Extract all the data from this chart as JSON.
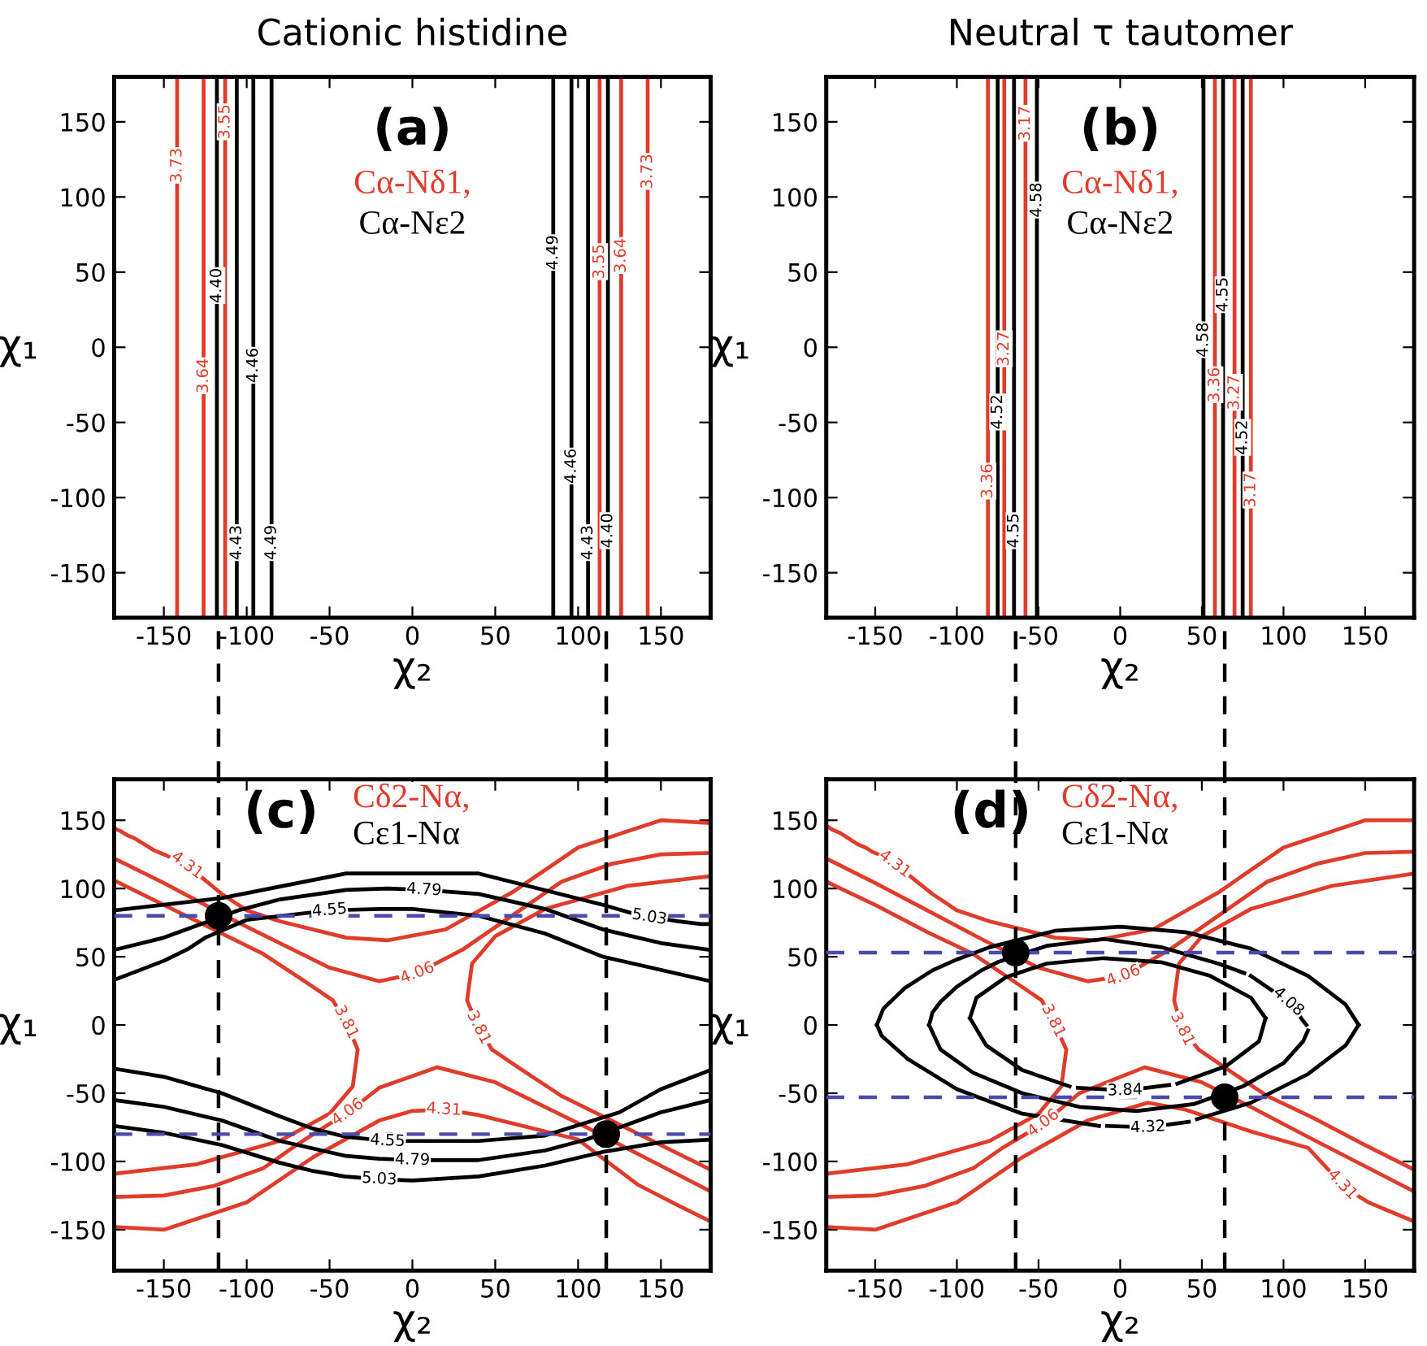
{
  "chart_data": [
    {
      "type": "line",
      "title": "Cationic histidine",
      "xlabel": "χ₂",
      "ylabel": "χ₁",
      "xlim": [
        -180,
        180
      ],
      "ylim": [
        -180,
        180
      ],
      "xticks": [
        -150,
        -100,
        -50,
        0,
        50,
        100,
        150
      ],
      "yticks": [
        -150,
        -100,
        -50,
        0,
        50,
        100,
        150
      ],
      "annotations": [
        "(a)",
        "Cα-Nδ1,",
        "Cα-Nε2"
      ],
      "series": [
        {
          "name": "3.73",
          "color": "#e03c2c",
          "x": [
            -142,
            -142,
            -142
          ],
          "values": [
            -180,
            121,
            180
          ]
        },
        {
          "name": "3.64",
          "color": "#e03c2c",
          "x": [
            -126,
            -126,
            -126
          ],
          "values": [
            -180,
            -19,
            180
          ]
        },
        {
          "name": "3.55",
          "color": "#e03c2c",
          "x": [
            -113,
            -113,
            -113
          ],
          "values": [
            -180,
            150,
            180
          ]
        },
        {
          "name": "3.55",
          "color": "#e03c2c",
          "x": [
            113,
            113,
            113
          ],
          "values": [
            -180,
            57,
            180
          ]
        },
        {
          "name": "3.64",
          "color": "#e03c2c",
          "x": [
            126,
            126,
            126
          ],
          "values": [
            -180,
            61,
            180
          ]
        },
        {
          "name": "3.73",
          "color": "#e03c2c",
          "x": [
            142,
            142,
            142
          ],
          "values": [
            -180,
            117,
            180
          ]
        },
        {
          "name": "4.40",
          "color": "#000000",
          "x": [
            -118,
            -118,
            -118
          ],
          "values": [
            -180,
            41,
            180
          ]
        },
        {
          "name": "4.43",
          "color": "#000000",
          "x": [
            -106,
            -106,
            -106
          ],
          "values": [
            -180,
            -130,
            180
          ]
        },
        {
          "name": "4.46",
          "color": "#000000",
          "x": [
            -96,
            -96,
            -96
          ],
          "values": [
            -180,
            -12,
            180
          ]
        },
        {
          "name": "4.49",
          "color": "#000000",
          "x": [
            -85,
            -85,
            -85
          ],
          "values": [
            -180,
            -130,
            180
          ]
        },
        {
          "name": "4.49",
          "color": "#000000",
          "x": [
            85,
            85,
            85
          ],
          "values": [
            -180,
            63,
            180
          ]
        },
        {
          "name": "4.46",
          "color": "#000000",
          "x": [
            96,
            96,
            96
          ],
          "values": [
            -180,
            -79,
            180
          ]
        },
        {
          "name": "4.43",
          "color": "#000000",
          "x": [
            106,
            106,
            106
          ],
          "values": [
            -180,
            -130,
            180
          ]
        },
        {
          "name": "4.40",
          "color": "#000000",
          "x": [
            118,
            118,
            118
          ],
          "values": [
            -180,
            -122,
            180
          ]
        }
      ]
    },
    {
      "type": "line",
      "title": "Neutral τ tautomer",
      "xlabel": "χ₂",
      "ylabel": "χ₁",
      "xlim": [
        -180,
        180
      ],
      "ylim": [
        -180,
        180
      ],
      "xticks": [
        -150,
        -100,
        -50,
        0,
        50,
        100,
        150
      ],
      "yticks": [
        -150,
        -100,
        -50,
        0,
        50,
        100,
        150
      ],
      "annotations": [
        "(b)",
        "Cα-Nδ1,",
        "Cα-Nε2"
      ],
      "series": [
        {
          "name": "3.36",
          "color": "#e03c2c",
          "x": [
            -81,
            -81,
            -81
          ],
          "values": [
            -180,
            -89,
            180
          ]
        },
        {
          "name": "3.27",
          "color": "#e03c2c",
          "x": [
            -71,
            -71,
            -71
          ],
          "values": [
            -180,
            -1,
            180
          ]
        },
        {
          "name": "3.17",
          "color": "#e03c2c",
          "x": [
            -58,
            -58,
            -58
          ],
          "values": [
            -180,
            149,
            180
          ]
        },
        {
          "name": "3.36",
          "color": "#e03c2c",
          "x": [
            58,
            58,
            58
          ],
          "values": [
            -180,
            -25,
            180
          ]
        },
        {
          "name": "3.27",
          "color": "#e03c2c",
          "x": [
            70,
            70,
            70
          ],
          "values": [
            -180,
            -30,
            180
          ]
        },
        {
          "name": "3.17",
          "color": "#e03c2c",
          "x": [
            80,
            80,
            80
          ],
          "values": [
            -180,
            -95,
            180
          ]
        },
        {
          "name": "4.52",
          "color": "#000000",
          "x": [
            -75,
            -75,
            -75
          ],
          "values": [
            -180,
            -43,
            180
          ]
        },
        {
          "name": "4.55",
          "color": "#000000",
          "x": [
            -65,
            -65,
            -65
          ],
          "values": [
            -180,
            -122,
            180
          ]
        },
        {
          "name": "4.58",
          "color": "#000000",
          "x": [
            -51,
            -51,
            -51
          ],
          "values": [
            -180,
            98,
            180
          ]
        },
        {
          "name": "4.58",
          "color": "#000000",
          "x": [
            51,
            51,
            51
          ],
          "values": [
            -180,
            5,
            180
          ]
        },
        {
          "name": "4.55",
          "color": "#000000",
          "x": [
            63,
            63,
            63
          ],
          "values": [
            -180,
            35,
            180
          ]
        },
        {
          "name": "4.52",
          "color": "#000000",
          "x": [
            75,
            75,
            75
          ],
          "values": [
            -180,
            -60,
            180
          ]
        }
      ]
    },
    {
      "type": "line",
      "xlabel": "χ₂",
      "ylabel": "χ₁",
      "xlim": [
        -180,
        180
      ],
      "ylim": [
        -180,
        180
      ],
      "xticks": [
        -150,
        -100,
        -50,
        0,
        50,
        100,
        150
      ],
      "yticks": [
        -150,
        -100,
        -50,
        0,
        50,
        100,
        150
      ],
      "annotations": [
        "(c)",
        "Cδ2-Nα,",
        "Cε1-Nα"
      ],
      "ref_lines": [
        {
          "axis": "x",
          "value": -117,
          "color": "#000000",
          "line_style": "dashed"
        },
        {
          "axis": "x",
          "value": 117,
          "color": "#000000",
          "line_style": "dashed"
        },
        {
          "axis": "y",
          "value": 80,
          "color": "#4a4aa8",
          "line_style": "dashed"
        },
        {
          "axis": "y",
          "value": -80,
          "color": "#4a4aa8",
          "line_style": "dashed"
        }
      ],
      "series": [
        {
          "name": "4.31",
          "color": "#e03c2c",
          "x": [
            -180,
            -176,
            -172,
            -168,
            -164,
            -160,
            -156,
            -152,
            -148,
            -142,
            -136,
            -115,
            -100,
            -80,
            -40,
            -15,
            20,
            60,
            100,
            150,
            180
          ],
          "values": [
            144,
            142,
            139,
            137,
            134,
            131,
            128,
            126,
            124,
            120,
            117,
            96,
            84,
            76,
            64,
            62,
            70,
            97,
            130,
            150,
            148
          ]
        },
        {
          "name": "4.06",
          "color": "#e03c2c",
          "x": [
            -180,
            -150,
            -105,
            -80,
            -50,
            -20,
            3,
            30,
            60,
            90,
            120,
            150,
            180
          ],
          "values": [
            122,
            104,
            75,
            60,
            42,
            32,
            38,
            55,
            80,
            105,
            118,
            125,
            126
          ]
        },
        {
          "name": "3.81",
          "color": "#e03c2c",
          "x": [
            -180,
            -150,
            -130,
            -90,
            -65,
            -48,
            -40,
            -33,
            -36,
            -50,
            -80,
            -130,
            -180
          ],
          "values": [
            106,
            88,
            76,
            52,
            32,
            18,
            2,
            -18,
            -45,
            -65,
            -85,
            -102,
            -109
          ]
        },
        {
          "name": "3.81",
          "color": "#e03c2c",
          "x": [
            180,
            150,
            130,
            90,
            65,
            48,
            40,
            33,
            36,
            50,
            80,
            130,
            180
          ],
          "values": [
            -106,
            -88,
            -76,
            -52,
            -32,
            -18,
            -2,
            18,
            45,
            65,
            85,
            102,
            109
          ]
        },
        {
          "name": "4.06",
          "color": "#e03c2c",
          "x": [
            -180,
            -150,
            -120,
            -90,
            -70,
            -52,
            -39,
            -20,
            15,
            50,
            80,
            105,
            180
          ],
          "values": [
            -126,
            -125,
            -118,
            -105,
            -88,
            -74,
            -64,
            -46,
            -31,
            -42,
            -60,
            -75,
            -122
          ]
        },
        {
          "name": "4.31",
          "color": "#e03c2c",
          "x": [
            -180,
            -150,
            -100,
            -60,
            -20,
            0,
            19,
            40,
            80,
            100,
            136,
            160,
            180
          ],
          "values": [
            -148,
            -150,
            -130,
            -97,
            -70,
            -63,
            -62,
            -66,
            -78,
            -84,
            -117,
            -132,
            -144
          ]
        },
        {
          "name": "5.03",
          "color": "#000000",
          "x": [
            -180,
            -115,
            -40,
            40,
            115,
            135,
            143,
            150,
            155,
            160,
            167,
            174,
            180
          ],
          "values": [
            84,
            93,
            111,
            111,
            88,
            81,
            79,
            78,
            77,
            76,
            75,
            74,
            74
          ]
        },
        {
          "name": "4.79",
          "color": "#000000",
          "x": [
            -180,
            -150,
            -105,
            -80,
            -40,
            -15,
            7,
            40,
            80,
            115,
            150,
            180
          ],
          "values": [
            55,
            64,
            84,
            92,
            99,
            100,
            99,
            96,
            85,
            70,
            60,
            55
          ]
        },
        {
          "name": "4.55",
          "color": "#000000",
          "x": [
            -180,
            -165,
            -150,
            -135,
            -125,
            -100,
            -50,
            -20,
            0,
            40,
            80,
            115,
            180
          ],
          "values": [
            33,
            40,
            47,
            56,
            64,
            77,
            84,
            85,
            85,
            80,
            67,
            50,
            32
          ]
        },
        {
          "name": "5.03",
          "color": "#000000",
          "x": [
            -180,
            -150,
            -115,
            -80,
            -60,
            -50,
            -41,
            -20,
            0,
            40,
            80,
            115,
            150,
            180
          ],
          "values": [
            -74,
            -79,
            -88,
            -101,
            -107,
            -109,
            -111,
            -113,
            -114,
            -111,
            -103,
            -93,
            -86,
            -84
          ]
        },
        {
          "name": "4.79",
          "color": "#000000",
          "x": [
            -180,
            -150,
            -115,
            -80,
            -40,
            -20,
            0,
            15,
            40,
            80,
            105,
            150,
            180
          ],
          "values": [
            -55,
            -60,
            -70,
            -85,
            -96,
            -98,
            -99,
            -99,
            -99,
            -92,
            -84,
            -64,
            -55
          ]
        },
        {
          "name": "4.55",
          "color": "#000000",
          "x": [
            -180,
            -150,
            -115,
            -80,
            -60,
            -40,
            -15,
            10,
            40,
            80,
            125,
            150,
            180
          ],
          "values": [
            -32,
            -38,
            -50,
            -67,
            -76,
            -82,
            -85,
            -85,
            -85,
            -81,
            -64,
            -47,
            -33
          ]
        },
        {
          "type": "scatter",
          "color": "#000000",
          "marker": "circle",
          "x": [
            -117,
            117
          ],
          "values": [
            80,
            -80
          ]
        }
      ]
    },
    {
      "type": "line",
      "xlabel": "χ₂",
      "ylabel": "χ₁",
      "xlim": [
        -180,
        180
      ],
      "ylim": [
        -180,
        180
      ],
      "xticks": [
        -150,
        -100,
        -50,
        0,
        50,
        100,
        150
      ],
      "yticks": [
        -150,
        -100,
        -50,
        0,
        50,
        100,
        150
      ],
      "annotations": [
        "(d)",
        "Cδ2-Nα,",
        "Cε1-Nα"
      ],
      "ref_lines": [
        {
          "axis": "x",
          "value": -64,
          "color": "#000000",
          "line_style": "dashed"
        },
        {
          "axis": "x",
          "value": 64,
          "color": "#000000",
          "line_style": "dashed"
        },
        {
          "axis": "y",
          "value": 53,
          "color": "#4a4aa8",
          "line_style": "dashed"
        },
        {
          "axis": "y",
          "value": -53,
          "color": "#4a4aa8",
          "line_style": "dashed"
        }
      ],
      "series": [
        {
          "name": "4.31",
          "color": "#e03c2c",
          "x": [
            -180,
            -176,
            -172,
            -168,
            -164,
            -160,
            -156,
            -152,
            -148,
            -143,
            -138,
            -115,
            -100,
            -80,
            -40,
            -15,
            20,
            60,
            100,
            150,
            180
          ],
          "values": [
            146,
            143,
            141,
            138,
            135,
            132,
            130,
            127,
            125,
            121,
            118,
            96,
            84,
            76,
            64,
            62,
            70,
            97,
            130,
            150,
            150
          ]
        },
        {
          "name": "4.06",
          "color": "#e03c2c",
          "x": [
            -180,
            -150,
            -115,
            -85,
            -50,
            -20,
            2,
            30,
            60,
            90,
            120,
            150,
            180
          ],
          "values": [
            122,
            104,
            82,
            63,
            42,
            32,
            36,
            55,
            80,
            105,
            118,
            126,
            127
          ]
        },
        {
          "name": "3.81",
          "color": "#e03c2c",
          "x": [
            -180,
            -150,
            -118,
            -90,
            -70,
            -48,
            -41,
            -33,
            -36,
            -50,
            -80,
            -130,
            -180
          ],
          "values": [
            105,
            88,
            68,
            52,
            36,
            18,
            3,
            -18,
            -45,
            -65,
            -85,
            -102,
            -109
          ]
        },
        {
          "name": "3.81",
          "color": "#e03c2c",
          "x": [
            180,
            150,
            118,
            90,
            75,
            48,
            38,
            33,
            36,
            50,
            80,
            130,
            180
          ],
          "values": [
            -106,
            -88,
            -68,
            -52,
            -40,
            -18,
            -3,
            18,
            45,
            65,
            85,
            102,
            111
          ]
        },
        {
          "name": "4.06",
          "color": "#e03c2c",
          "x": [
            -180,
            -150,
            -120,
            -90,
            -72,
            -58,
            -47,
            -25,
            15,
            50,
            80,
            115,
            180
          ],
          "values": [
            -126,
            -125,
            -118,
            -105,
            -90,
            -80,
            -72,
            -50,
            -31,
            -42,
            -60,
            -82,
            -122
          ]
        },
        {
          "name": "4.31",
          "color": "#e03c2c",
          "x": [
            -180,
            -150,
            -100,
            -60,
            -20,
            17,
            40,
            80,
            115,
            136,
            140,
            144,
            148,
            152,
            156,
            162,
            168,
            174,
            180
          ],
          "values": [
            -148,
            -150,
            -130,
            -97,
            -70,
            -57,
            -62,
            -78,
            -90,
            -117,
            -121,
            -124,
            -127,
            -130,
            -132,
            -135,
            -138,
            -141,
            -144
          ]
        },
        {
          "color": "#000000",
          "x": [
            -149,
            -145,
            -132,
            -115,
            -100,
            -80,
            -40,
            0,
            40,
            80,
            115,
            138,
            146
          ],
          "values": [
            0,
            12,
            27,
            40,
            48,
            57,
            69,
            72,
            68,
            56,
            36,
            15,
            0
          ]
        },
        {
          "color": "#000000",
          "x": [
            -149,
            -146,
            -130,
            -100,
            -60,
            -13
          ],
          "values": [
            0,
            -8,
            -25,
            -47,
            -65,
            -74
          ]
        },
        {
          "name": "4.32",
          "color": "#000000",
          "x": [
            -8,
            17,
            42
          ],
          "values": [
            -74,
            -75,
            -71
          ]
        },
        {
          "color": "#000000",
          "x": [
            47,
            80,
            115,
            138,
            146
          ],
          "values": [
            -69,
            -57,
            -36,
            -15,
            0
          ]
        },
        {
          "color": "#000000",
          "x": [
            -117,
            -115,
            -110,
            -100,
            -85,
            -75,
            -45,
            -10,
            25,
            60,
            76
          ],
          "values": [
            0,
            9,
            17,
            28,
            40,
            46,
            58,
            63,
            57,
            45,
            38
          ]
        },
        {
          "name": "4.08",
          "color": "#000000",
          "x": [
            80,
            103,
            114
          ],
          "values": [
            36,
            17,
            0
          ]
        },
        {
          "color": "#000000",
          "x": [
            -117,
            -110,
            -90,
            -60,
            -25,
            10,
            45,
            75,
            100,
            112,
            115
          ],
          "values": [
            0,
            -18,
            -35,
            -50,
            -60,
            -63,
            -58,
            -45,
            -28,
            -12,
            -4
          ]
        },
        {
          "color": "#000000",
          "x": [
            -92,
            -88,
            -70,
            -45,
            -10,
            25,
            55,
            80,
            89
          ],
          "values": [
            5,
            20,
            35,
            45,
            49,
            46,
            36,
            20,
            5
          ]
        },
        {
          "color": "#000000",
          "x": [
            -92,
            -82,
            -60,
            -31
          ],
          "values": [
            5,
            -15,
            -33,
            -45
          ]
        },
        {
          "name": "3.84",
          "color": "#000000",
          "x": [
            -26,
            3,
            30
          ],
          "values": [
            -46,
            -48,
            -44
          ]
        },
        {
          "color": "#000000",
          "x": [
            35,
            65,
            85,
            89
          ],
          "values": [
            -43,
            -30,
            -12,
            5
          ]
        },
        {
          "type": "scatter",
          "color": "#000000",
          "marker": "circle",
          "x": [
            -64,
            64
          ],
          "values": [
            53,
            -53
          ]
        }
      ]
    }
  ]
}
